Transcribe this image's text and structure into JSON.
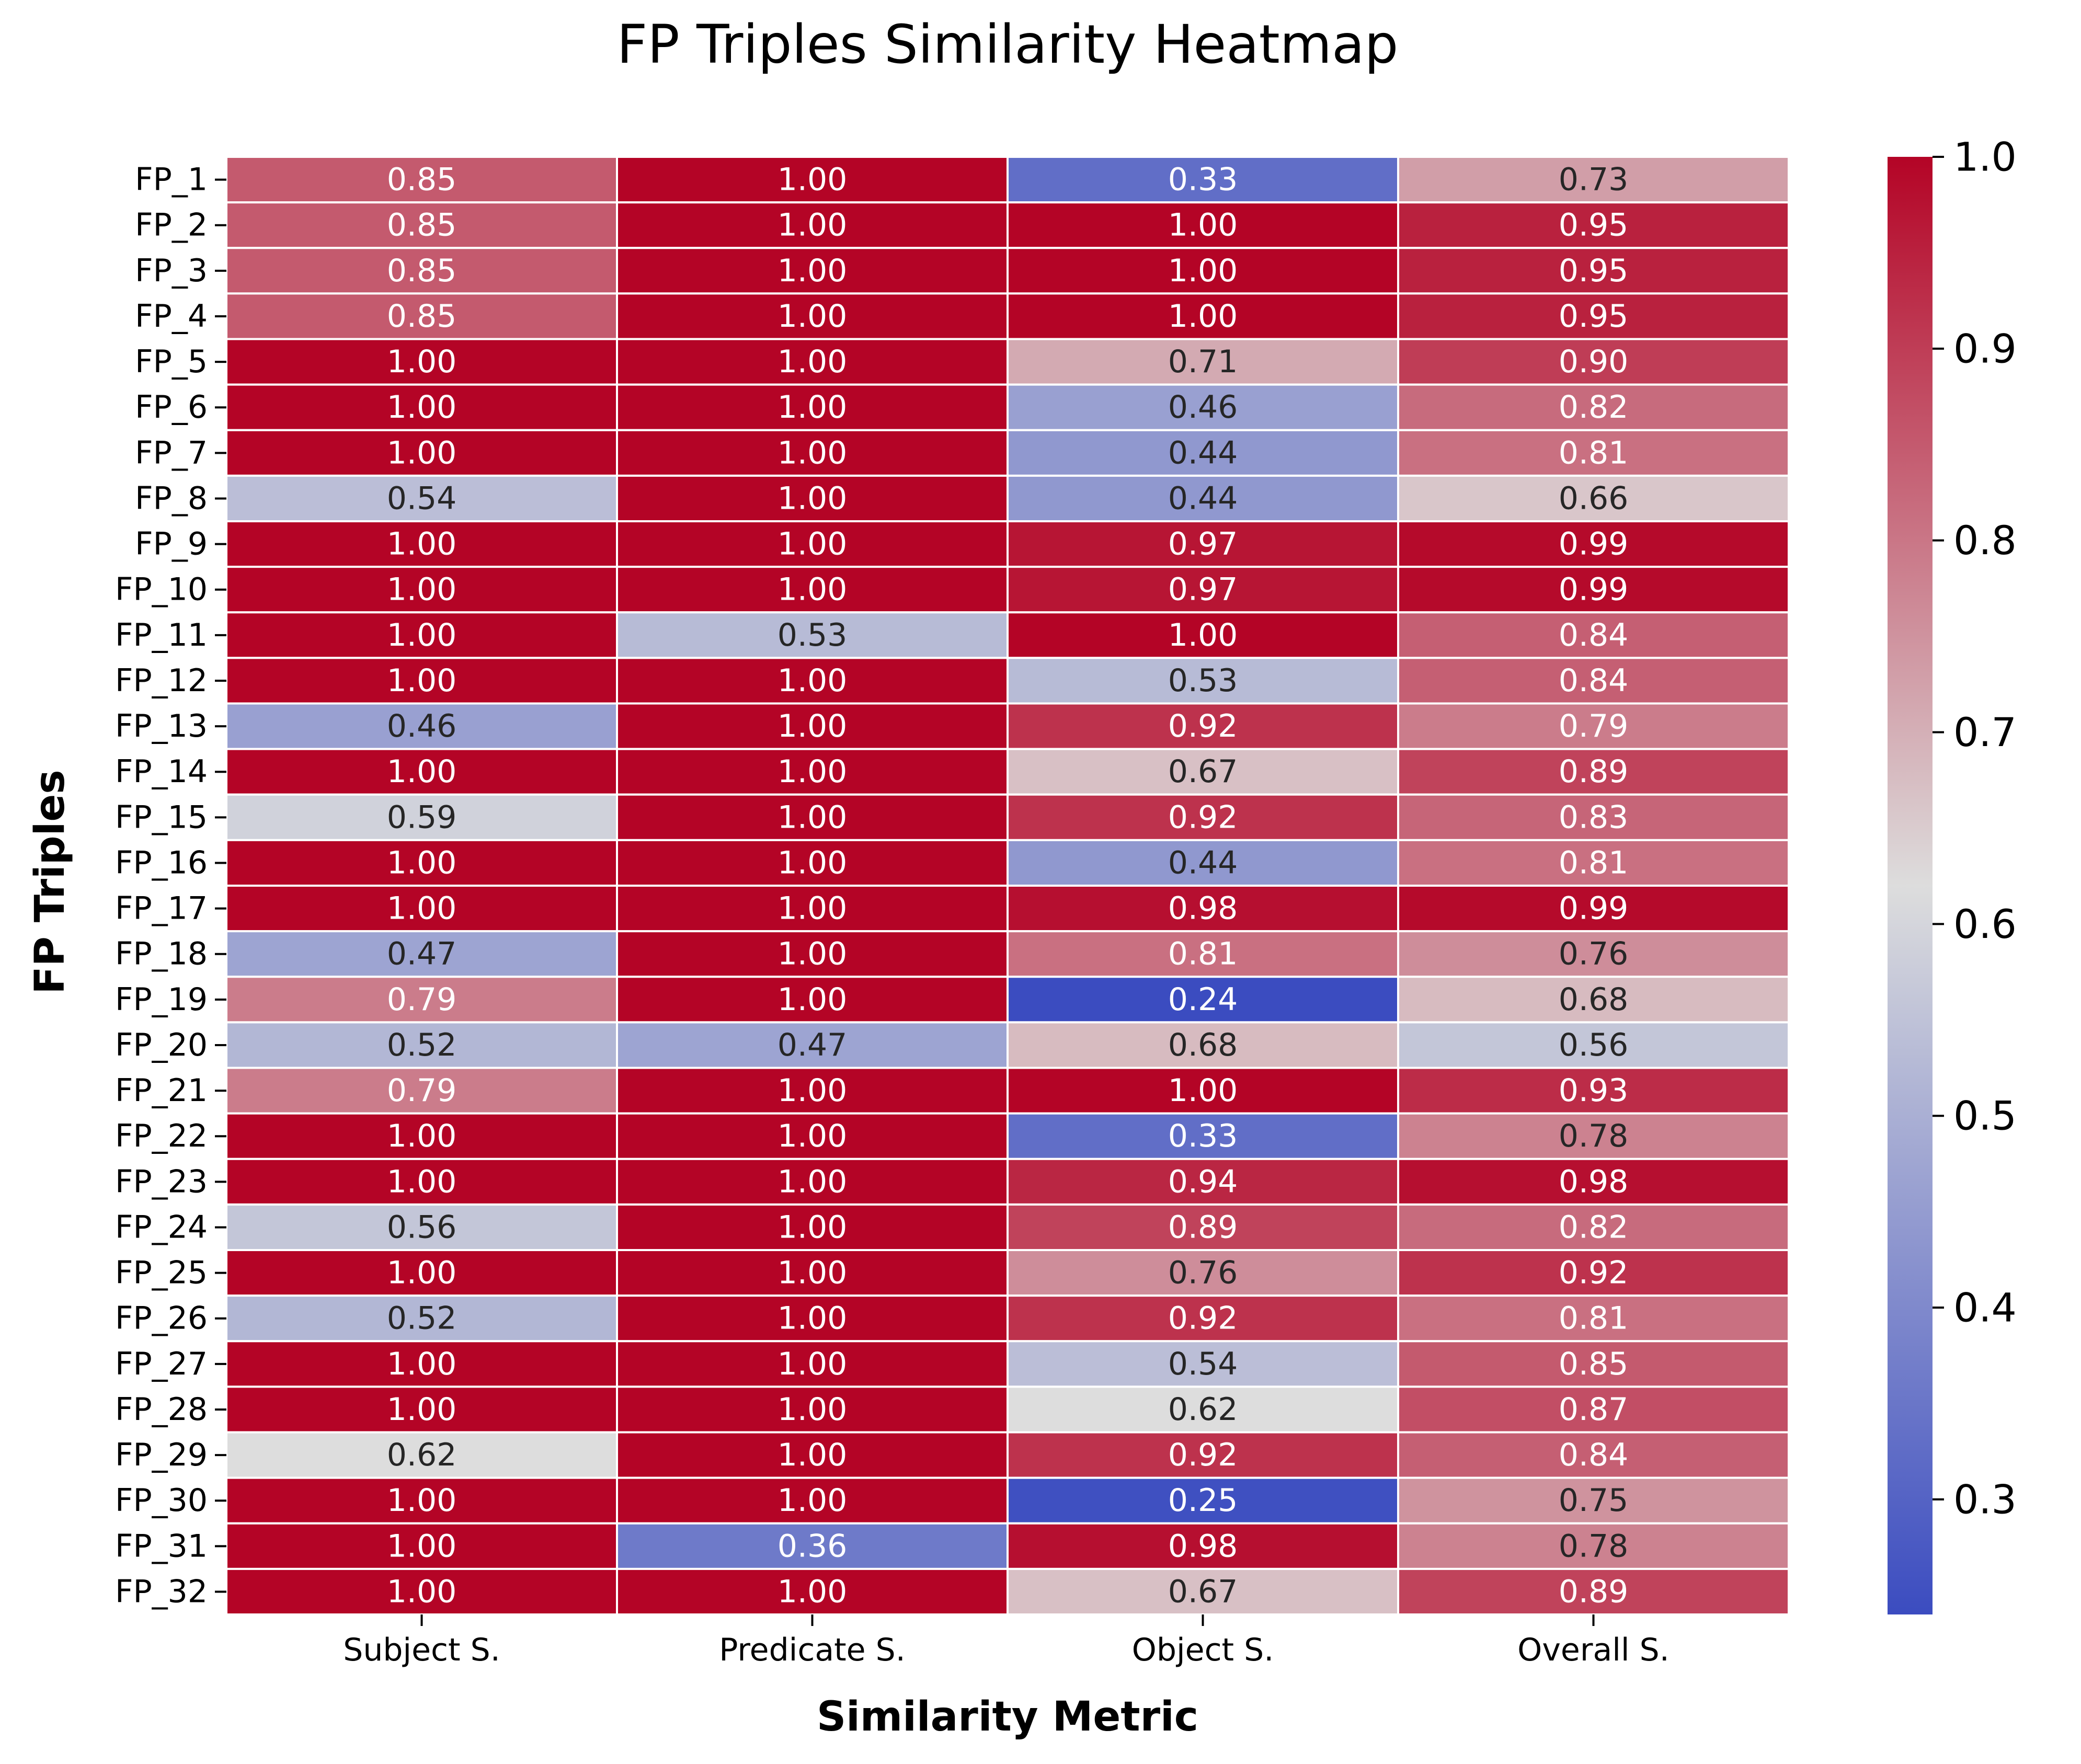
{
  "chart_data": {
    "type": "heatmap",
    "title": "FP Triples Similarity Heatmap",
    "xlabel": "Similarity Metric",
    "ylabel": "FP Triples",
    "columns": [
      "Subject S.",
      "Predicate S.",
      "Object S.",
      "Overall S."
    ],
    "rows": [
      "FP_1",
      "FP_2",
      "FP_3",
      "FP_4",
      "FP_5",
      "FP_6",
      "FP_7",
      "FP_8",
      "FP_9",
      "FP_10",
      "FP_11",
      "FP_12",
      "FP_13",
      "FP_14",
      "FP_15",
      "FP_16",
      "FP_17",
      "FP_18",
      "FP_19",
      "FP_20",
      "FP_21",
      "FP_22",
      "FP_23",
      "FP_24",
      "FP_25",
      "FP_26",
      "FP_27",
      "FP_28",
      "FP_29",
      "FP_30",
      "FP_31",
      "FP_32"
    ],
    "values": [
      [
        0.85,
        1.0,
        0.33,
        0.73
      ],
      [
        0.85,
        1.0,
        1.0,
        0.95
      ],
      [
        0.85,
        1.0,
        1.0,
        0.95
      ],
      [
        0.85,
        1.0,
        1.0,
        0.95
      ],
      [
        1.0,
        1.0,
        0.71,
        0.9
      ],
      [
        1.0,
        1.0,
        0.46,
        0.82
      ],
      [
        1.0,
        1.0,
        0.44,
        0.81
      ],
      [
        0.54,
        1.0,
        0.44,
        0.66
      ],
      [
        1.0,
        1.0,
        0.97,
        0.99
      ],
      [
        1.0,
        1.0,
        0.97,
        0.99
      ],
      [
        1.0,
        0.53,
        1.0,
        0.84
      ],
      [
        1.0,
        1.0,
        0.53,
        0.84
      ],
      [
        0.46,
        1.0,
        0.92,
        0.79
      ],
      [
        1.0,
        1.0,
        0.67,
        0.89
      ],
      [
        0.59,
        1.0,
        0.92,
        0.83
      ],
      [
        1.0,
        1.0,
        0.44,
        0.81
      ],
      [
        1.0,
        1.0,
        0.98,
        0.99
      ],
      [
        0.47,
        1.0,
        0.81,
        0.76
      ],
      [
        0.79,
        1.0,
        0.24,
        0.68
      ],
      [
        0.52,
        0.47,
        0.68,
        0.56
      ],
      [
        0.79,
        1.0,
        1.0,
        0.93
      ],
      [
        1.0,
        1.0,
        0.33,
        0.78
      ],
      [
        1.0,
        1.0,
        0.94,
        0.98
      ],
      [
        0.56,
        1.0,
        0.89,
        0.82
      ],
      [
        1.0,
        1.0,
        0.76,
        0.92
      ],
      [
        0.52,
        1.0,
        0.92,
        0.81
      ],
      [
        1.0,
        1.0,
        0.54,
        0.85
      ],
      [
        1.0,
        1.0,
        0.62,
        0.87
      ],
      [
        0.62,
        1.0,
        0.92,
        0.84
      ],
      [
        1.0,
        1.0,
        0.25,
        0.75
      ],
      [
        1.0,
        0.36,
        0.98,
        0.78
      ],
      [
        1.0,
        1.0,
        0.67,
        0.89
      ]
    ],
    "value_format": "2 decimals",
    "colormap": "coolwarm",
    "colormap_stops": [
      "#3b4cc0",
      "#dddddd",
      "#b40426"
    ],
    "colorbar": {
      "range": [
        0.24,
        1.0
      ],
      "ticks": [
        0.3,
        0.4,
        0.5,
        0.6,
        0.7,
        0.8,
        0.9,
        1.0
      ],
      "tick_labels": [
        "0.3",
        "0.4",
        "0.5",
        "0.6",
        "0.7",
        "0.8",
        "0.9",
        "1.0"
      ],
      "position": "right"
    },
    "grid": false,
    "cell_borders": "#ffffff"
  }
}
